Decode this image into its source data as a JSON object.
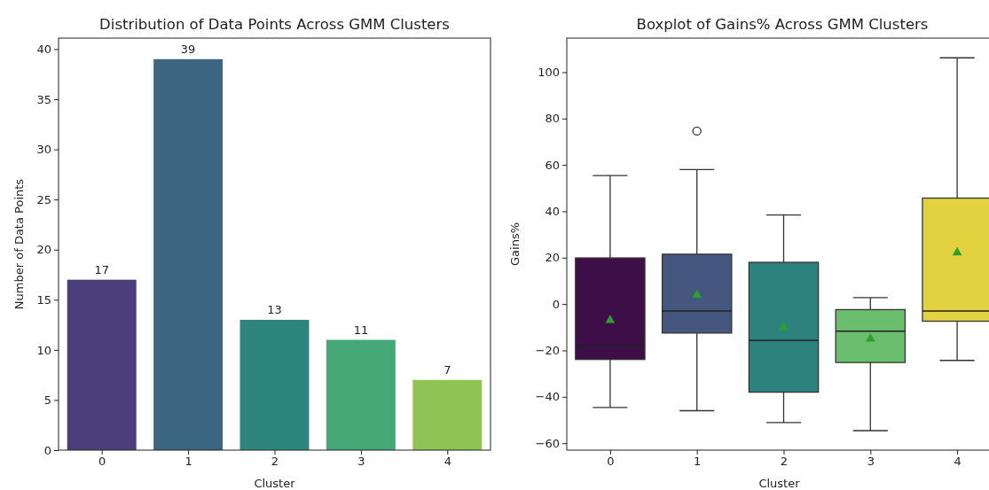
{
  "chart_data": [
    {
      "type": "bar",
      "title": "Distribution of Data Points Across GMM Clusters",
      "xlabel": "Cluster",
      "ylabel": "Number of Data Points",
      "categories": [
        "0",
        "1",
        "2",
        "3",
        "4"
      ],
      "values": [
        17,
        39,
        13,
        11,
        7
      ],
      "colors": [
        "#4a3f7a",
        "#3d6682",
        "#2e857e",
        "#47a877",
        "#8ec454"
      ],
      "ylim": [
        0,
        41.1
      ],
      "yticks": [
        0,
        5,
        10,
        15,
        20,
        25,
        30,
        35,
        40
      ],
      "data_labels": true,
      "grid": false
    },
    {
      "type": "box",
      "title": "Boxplot of Gains% Across GMM Clusters",
      "xlabel": "Cluster",
      "ylabel": "Gains%",
      "categories": [
        "0",
        "1",
        "2",
        "3",
        "4"
      ],
      "colors": [
        "#3d0e47",
        "#46577f",
        "#2e827e",
        "#6abd6d",
        "#e2d240"
      ],
      "ylim": [
        -63,
        114.7
      ],
      "yticks": [
        -60,
        -40,
        -20,
        0,
        20,
        40,
        60,
        80,
        100
      ],
      "boxes": [
        {
          "low": -44.6,
          "q1": -23.9,
          "median": -17.9,
          "q3": 19.9,
          "high": 55.4,
          "mean": -7
        },
        {
          "low": -46,
          "q1": -12.5,
          "median": -3,
          "q3": 21.5,
          "high": 58,
          "mean": 3.9,
          "outliers": [
            74.6
          ]
        },
        {
          "low": -51.1,
          "q1": -38,
          "median": -15.7,
          "q3": 18,
          "high": 38.4,
          "mean": -10
        },
        {
          "low": -54.6,
          "q1": -25.2,
          "median": -11.7,
          "q3": -2.4,
          "high": 2.8,
          "mean": -15
        },
        {
          "low": -24.3,
          "q1": -7.4,
          "median": -3,
          "q3": 45.7,
          "high": 106.2,
          "mean": 22.2
        }
      ],
      "grid": false
    }
  ]
}
